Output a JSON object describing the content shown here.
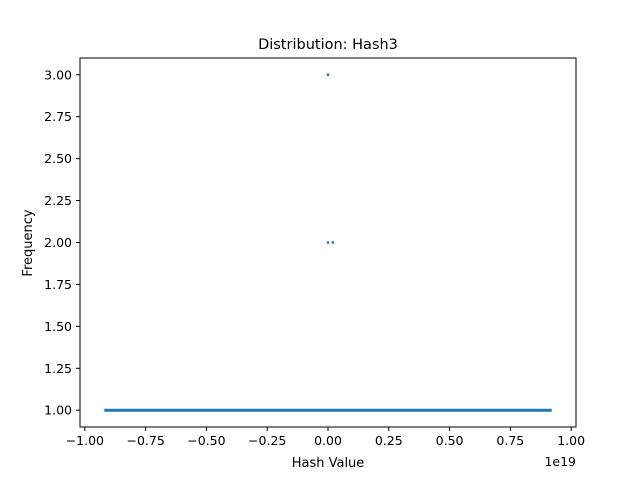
{
  "chart_data": {
    "type": "scatter",
    "title": "Distribution: Hash3",
    "xlabel": "Hash Value",
    "ylabel": "Frequency",
    "x_offset_label": "1e19",
    "xlim": [
      -1.02,
      1.02
    ],
    "ylim": [
      0.9,
      3.1
    ],
    "xticks": [
      -1.0,
      -0.75,
      -0.5,
      -0.25,
      0.0,
      0.25,
      0.5,
      0.75,
      1.0
    ],
    "xtick_labels": [
      "−1.00",
      "−0.75",
      "−0.50",
      "−0.25",
      "0.00",
      "0.25",
      "0.50",
      "0.75",
      "1.00"
    ],
    "yticks": [
      1.0,
      1.25,
      1.5,
      1.75,
      2.0,
      2.25,
      2.5,
      2.75,
      3.0
    ],
    "ytick_labels": [
      "1.00",
      "1.25",
      "1.50",
      "1.75",
      "2.00",
      "2.25",
      "2.50",
      "2.75",
      "3.00"
    ],
    "grid": false,
    "series": [
      {
        "color": "#1f77b4",
        "frequency_1_range": [
          -0.92,
          0.92
        ],
        "points": [
          {
            "x": 0.0,
            "y": 3
          },
          {
            "x": 0.0,
            "y": 2
          },
          {
            "x": 0.02,
            "y": 2
          }
        ]
      }
    ]
  }
}
